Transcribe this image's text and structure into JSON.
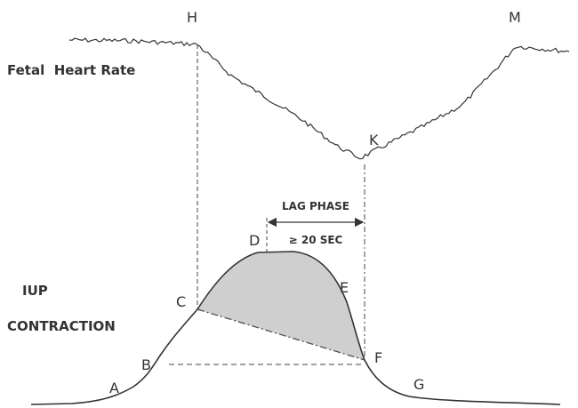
{
  "fhr_label": "Fetal  Heart Rate",
  "iup_label": [
    "IUP",
    "CONTRACTION"
  ],
  "lag_phase": "LAG PHASE",
  "lag_duration": "≥ 20 SEC",
  "points": {
    "A": "A",
    "B": "B",
    "C": "C",
    "D": "D",
    "E": "E",
    "F": "F",
    "G": "G",
    "H": "H",
    "K": "K",
    "M": "M"
  }
}
